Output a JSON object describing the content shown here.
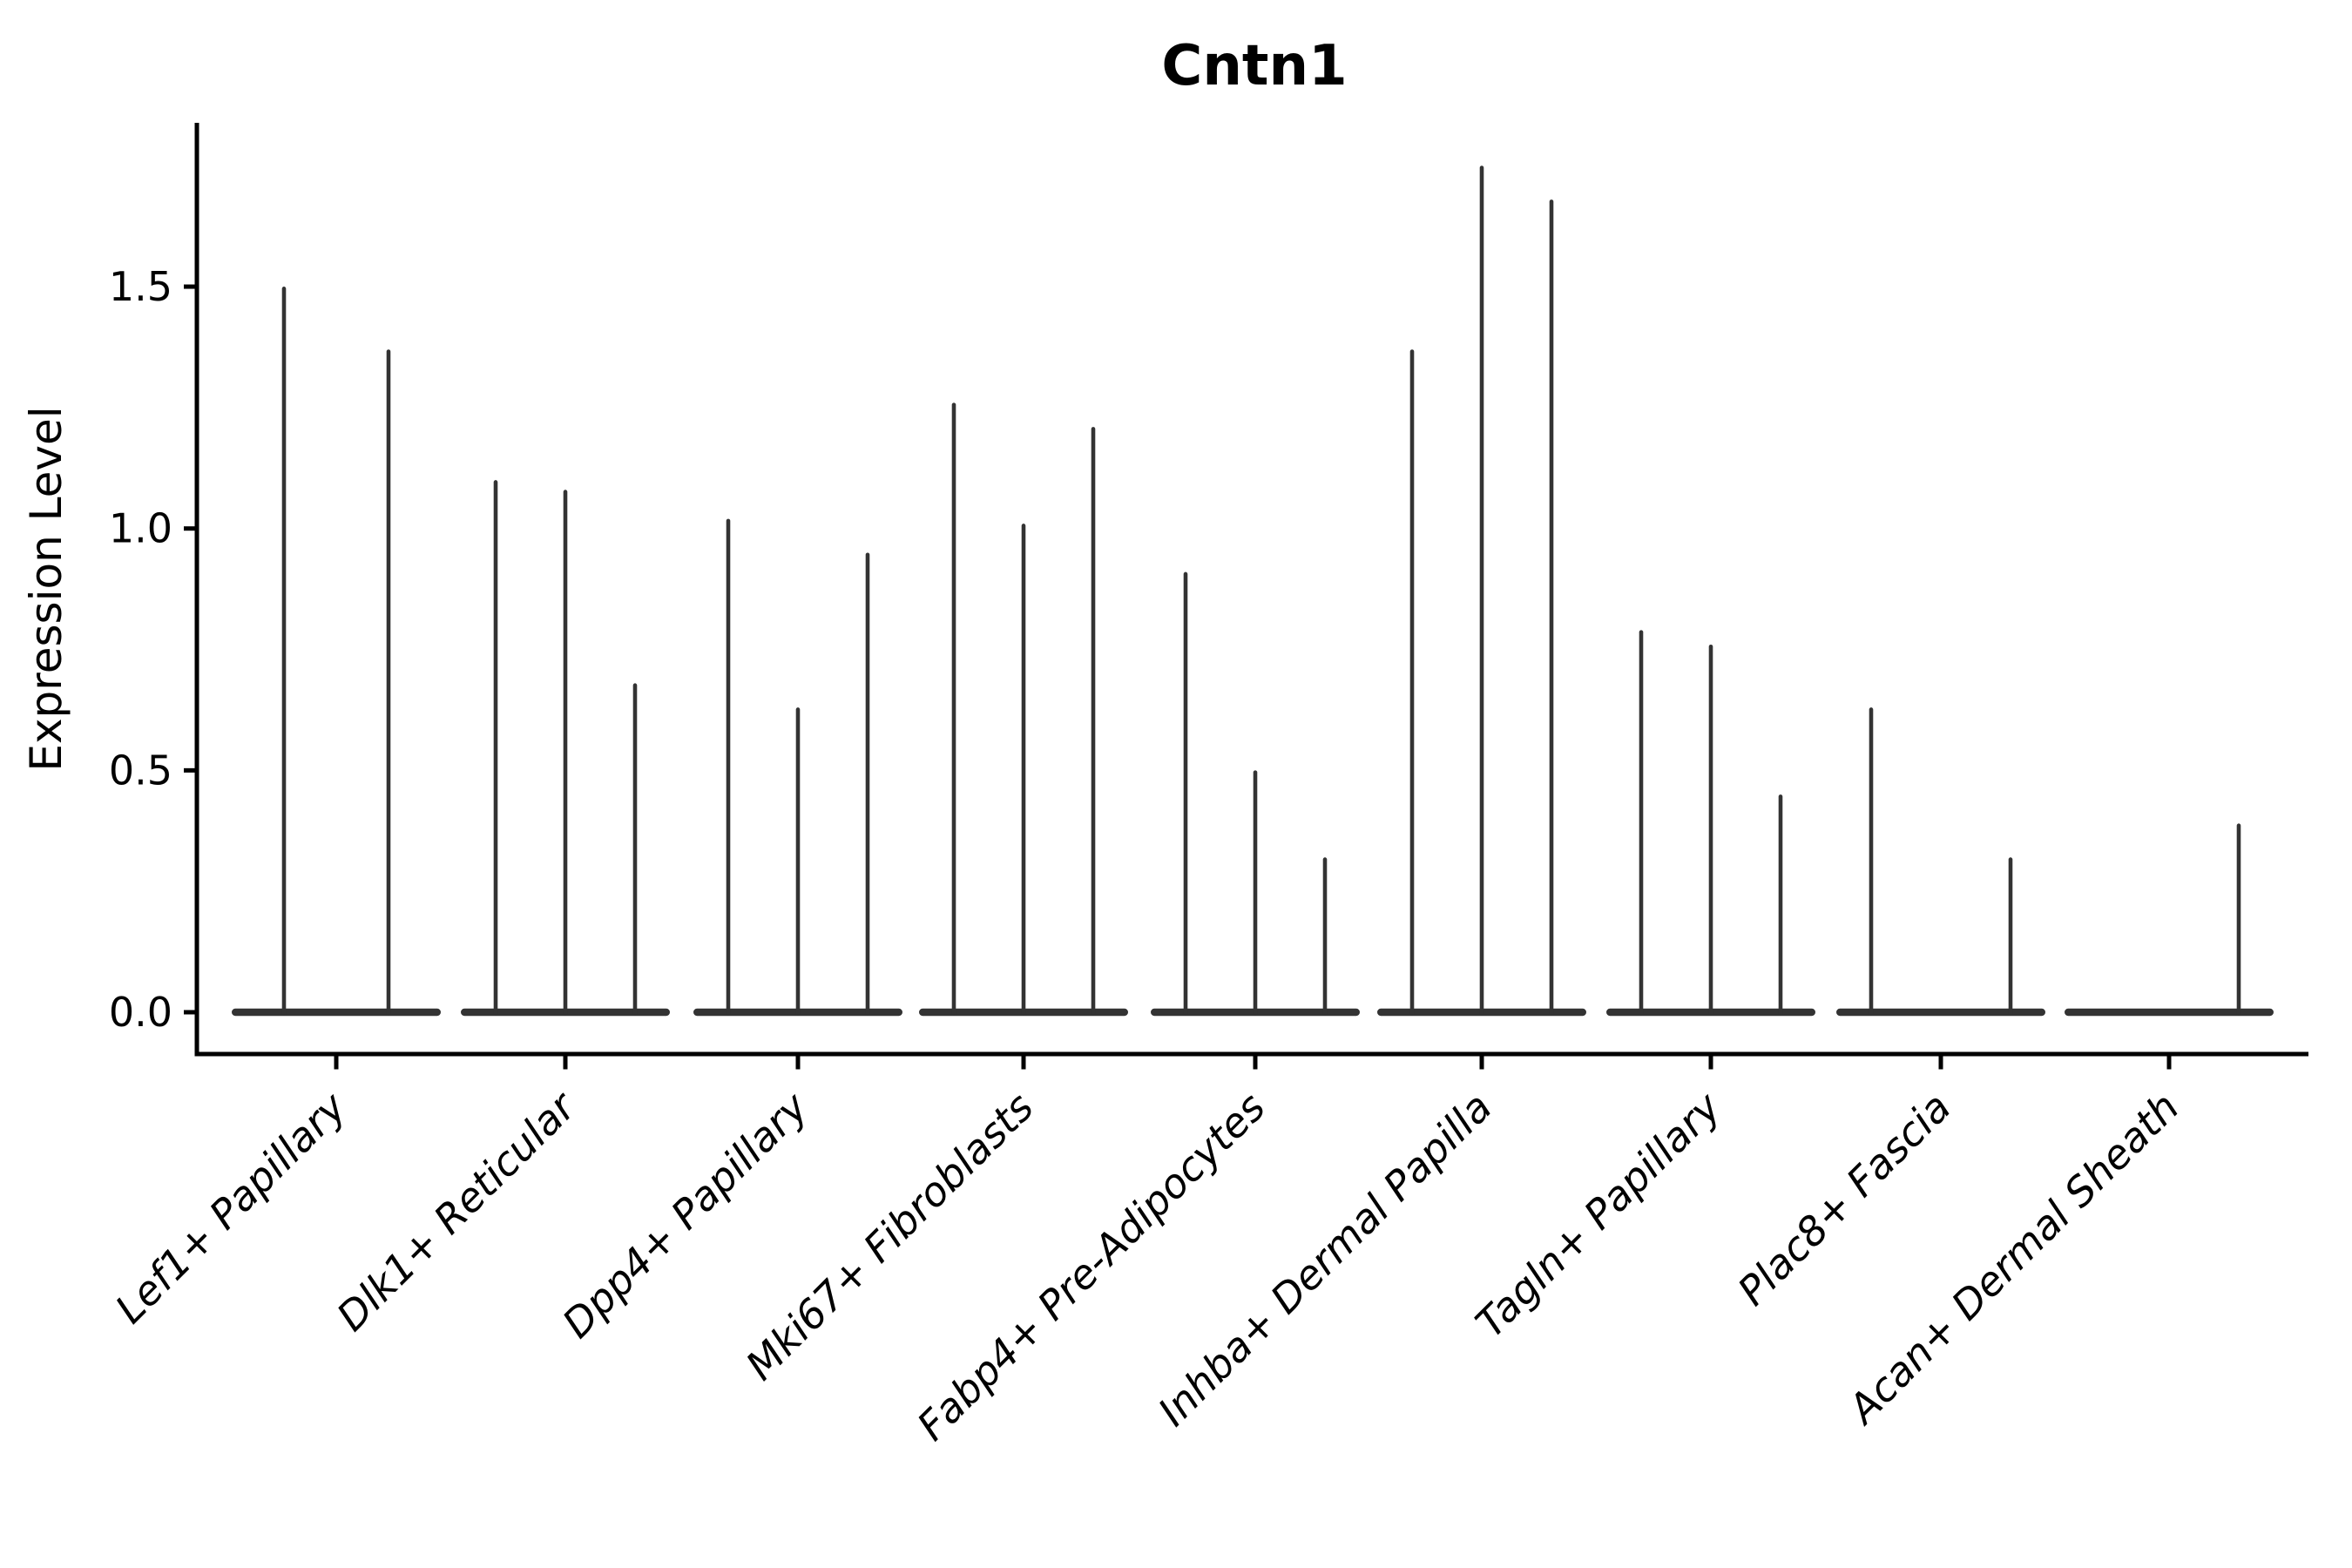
{
  "title": "Cntn1",
  "y_axis": {
    "label": "Expression Level",
    "tick_labels": [
      "0.0",
      "0.5",
      "1.0",
      "1.5"
    ],
    "tick_values": [
      0.0,
      0.5,
      1.0,
      1.5
    ]
  },
  "x_axis": {
    "tick_labels": [
      "Lef1+ Papillary",
      "Dlk1+ Reticular",
      "Dpp4+ Papillary",
      "Mki67+ Fibroblasts",
      "Fabp4+ Pre-Adipocytes",
      "Inhba+ Dermal Papilla",
      "Tagln+ Papillary",
      "Plac8+ Fascia",
      "Acan+ Dermal Sheath"
    ]
  },
  "style": {
    "violin_color": "#333333",
    "axis_color": "#000000",
    "text_color": "#000000",
    "background": "#ffffff"
  },
  "chart_data": {
    "type": "violin",
    "title": "Cntn1",
    "xlabel": "",
    "ylabel": "Expression Level",
    "yticks": [
      0.0,
      0.5,
      1.0,
      1.5
    ],
    "ylim": [
      -0.09,
      1.84
    ],
    "legend": "none",
    "grid": false,
    "categories": [
      "Lef1+ Papillary",
      "Dlk1+ Reticular",
      "Dpp4+ Papillary",
      "Mki67+ Fibroblasts",
      "Fabp4+ Pre-Adipocytes",
      "Inhba+ Dermal Papilla",
      "Tagln+ Papillary",
      "Plac8+ Fascia",
      "Acan+ Dermal Sheath"
    ],
    "description": "Violin plot of Cntn1 expression; each category holds 2-3 very thin violins that are flat at 0 with a narrow spike rising to the max expression value.",
    "groups": [
      {
        "category": "Lef1+ Papillary",
        "violins": [
          {
            "max_expression": 1.5
          },
          {
            "max_expression": 1.37
          }
        ]
      },
      {
        "category": "Dlk1+ Reticular",
        "violins": [
          {
            "max_expression": 1.1
          },
          {
            "max_expression": 1.08
          },
          {
            "max_expression": 0.68
          }
        ]
      },
      {
        "category": "Dpp4+ Papillary",
        "violins": [
          {
            "max_expression": 1.02
          },
          {
            "max_expression": 0.63
          },
          {
            "max_expression": 0.95
          }
        ]
      },
      {
        "category": "Mki67+ Fibroblasts",
        "violins": [
          {
            "max_expression": 1.26
          },
          {
            "max_expression": 1.01
          },
          {
            "max_expression": 1.21
          }
        ]
      },
      {
        "category": "Fabp4+ Pre-Adipocytes",
        "violins": [
          {
            "max_expression": 0.91
          },
          {
            "max_expression": 0.5
          },
          {
            "max_expression": 0.32
          }
        ]
      },
      {
        "category": "Inhba+ Dermal Papilla",
        "violins": [
          {
            "max_expression": 1.37
          },
          {
            "max_expression": 1.75
          },
          {
            "max_expression": 1.68
          }
        ]
      },
      {
        "category": "Tagln+ Papillary",
        "violins": [
          {
            "max_expression": 0.79
          },
          {
            "max_expression": 0.76
          },
          {
            "max_expression": 0.45
          }
        ]
      },
      {
        "category": "Plac8+ Fascia",
        "violins": [
          {
            "max_expression": 0.63
          },
          {
            "max_expression": 0.0
          },
          {
            "max_expression": 0.32
          }
        ]
      },
      {
        "category": "Acan+ Dermal Sheath",
        "violins": [
          {
            "max_expression": 0.0
          },
          {
            "max_expression": 0.0
          },
          {
            "max_expression": 0.39
          }
        ]
      }
    ]
  }
}
